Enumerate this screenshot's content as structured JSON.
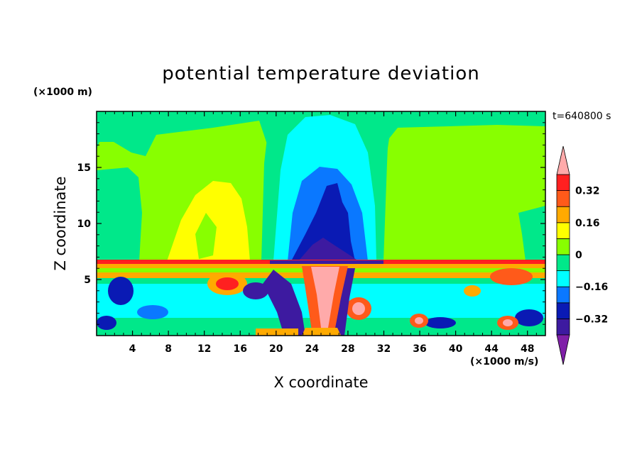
{
  "chart_data": {
    "type": "heatmap",
    "title": "potential temperature deviation",
    "xlabel": "X coordinate",
    "ylabel": "Z coordinate",
    "x_unit": "(×1000 m/s)",
    "y_unit": "(×1000 m)",
    "time_label": "t=640800 s",
    "xlim": [
      0,
      50
    ],
    "ylim": [
      0,
      20
    ],
    "x_ticks": [
      4,
      8,
      12,
      16,
      20,
      24,
      28,
      32,
      36,
      40,
      44,
      48
    ],
    "y_ticks": [
      5,
      10,
      15
    ],
    "colorbar": {
      "levels": [
        -0.48,
        -0.4,
        -0.32,
        -0.24,
        -0.16,
        -0.08,
        0,
        0.08,
        0.16,
        0.24,
        0.32,
        0.4
      ],
      "tick_labels": [
        "0.32",
        "0.16",
        "0",
        "−0.16",
        "−0.32"
      ],
      "tick_values": [
        0.32,
        0.16,
        0,
        -0.16,
        -0.32
      ],
      "colors": [
        "#7f1fa8",
        "#3d1aa0",
        "#0a1ab4",
        "#0a78ff",
        "#00ffff",
        "#00e88a",
        "#88ff00",
        "#ffff00",
        "#ffaa00",
        "#ff5a1a",
        "#ff2020",
        "#ffaaaa"
      ],
      "extend": "both"
    }
  }
}
